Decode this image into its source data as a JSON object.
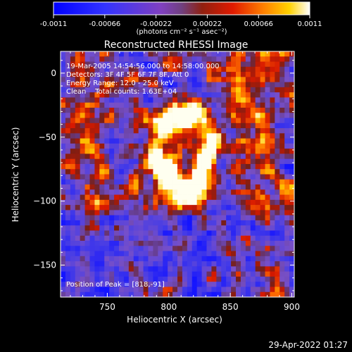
{
  "colorbar": {
    "ticks": [
      "-0.0011",
      "-0.00066",
      "-0.00022",
      "0.00022",
      "0.00066",
      "0.0011"
    ],
    "unit_label": "(photons cm⁻² s⁻¹ asec⁻²)",
    "range": [
      -0.0011,
      0.0011
    ]
  },
  "title": "Reconstructed RHESSI Image",
  "annotations": {
    "time_range": "19-Mar-2005 14:54:56.000 to 14:58:00.000",
    "detectors": "Detectors: 3F 4F 5F 6F 7F 8F, Att 0",
    "energy_range": "Energy Range: 12.0 - 25.0 keV",
    "clean_counts": "Clean    Total counts: 1.63E+04",
    "peak_position": "Position of Peak = [818,-91]"
  },
  "timestamp": "29-Apr-2022 01:27",
  "chart_data": {
    "type": "heatmap",
    "title": "Reconstructed RHESSI Image",
    "xlabel": "Heliocentric X (arcsec)",
    "ylabel": "Heliocentric Y (arcsec)",
    "xlim": [
      712,
      902
    ],
    "ylim": [
      -175,
      17
    ],
    "x_ticks": [
      750,
      800,
      850,
      900
    ],
    "y_ticks": [
      0,
      -50,
      -100,
      -150
    ],
    "x_tick_labels": [
      "750",
      "800",
      "850",
      "900"
    ],
    "y_tick_labels": [
      "0",
      "−50",
      "−100",
      "−150"
    ],
    "peak": [
      818,
      -91
    ],
    "colormap": "red-temperature (blue negative, purple zero, red-yellow-white positive)",
    "color_range": [
      -0.0011,
      0.0011
    ],
    "pixel_grid": [
      48,
      48
    ]
  },
  "colors": {
    "background": "#000000",
    "text": "#ffffff",
    "cmap": [
      "#1414ff",
      "#5a3cff",
      "#7b4bd0",
      "#6a3a90",
      "#7a1a10",
      "#e02000",
      "#ff6a00",
      "#ffc800",
      "#ffffff"
    ]
  }
}
